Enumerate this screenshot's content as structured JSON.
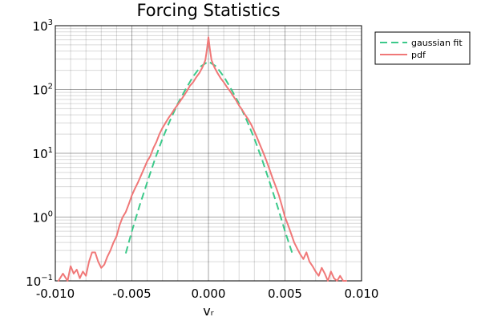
{
  "chart_data": {
    "type": "line",
    "title": "Forcing Statistics",
    "xlabel": "vᵣ",
    "ylabel": "",
    "xlim": [
      -0.01,
      0.01
    ],
    "ylim": [
      0.1,
      1000
    ],
    "yscale": "log",
    "grid": true,
    "legend_position": "top-right-outside",
    "x_ticks": [
      "-0.010",
      "-0.005",
      "0.000",
      "0.005",
      "0.010"
    ],
    "y_ticks": [
      {
        "base": "10",
        "exp": "−1",
        "value": 0.1
      },
      {
        "base": "10",
        "exp": "0",
        "value": 1
      },
      {
        "base": "10",
        "exp": "1",
        "value": 10
      },
      {
        "base": "10",
        "exp": "2",
        "value": 100
      },
      {
        "base": "10",
        "exp": "3",
        "value": 1000
      }
    ],
    "series": [
      {
        "name": "gaussian fit",
        "style": "dashed",
        "color": "#3cc98a",
        "x": [
          -0.0054,
          -0.005,
          -0.0045,
          -0.004,
          -0.0035,
          -0.003,
          -0.0025,
          -0.002,
          -0.0015,
          -0.001,
          -0.0005,
          0.0,
          0.0005,
          0.001,
          0.0015,
          0.002,
          0.0025,
          0.003,
          0.0035,
          0.004,
          0.0045,
          0.005,
          0.0055
        ],
        "y": [
          0.27,
          0.6,
          1.5,
          3.5,
          8,
          17,
          33,
          60,
          100,
          160,
          230,
          275,
          230,
          160,
          100,
          60,
          33,
          17,
          8,
          3.5,
          1.5,
          0.6,
          0.26
        ]
      },
      {
        "name": "pdf",
        "style": "solid",
        "color": "#f07878",
        "x": [
          -0.0098,
          -0.0095,
          -0.0092,
          -0.009,
          -0.0088,
          -0.0086,
          -0.0084,
          -0.0082,
          -0.008,
          -0.0078,
          -0.0076,
          -0.0074,
          -0.0072,
          -0.007,
          -0.0068,
          -0.0066,
          -0.0064,
          -0.0062,
          -0.006,
          -0.0058,
          -0.0056,
          -0.0054,
          -0.0052,
          -0.005,
          -0.0048,
          -0.0046,
          -0.0044,
          -0.0042,
          -0.004,
          -0.0038,
          -0.0036,
          -0.0034,
          -0.0032,
          -0.003,
          -0.0028,
          -0.0026,
          -0.0024,
          -0.0022,
          -0.002,
          -0.0018,
          -0.0016,
          -0.0014,
          -0.0012,
          -0.001,
          -0.0008,
          -0.0006,
          -0.0004,
          -0.0003,
          -0.0002,
          -0.0001,
          0.0,
          0.0001,
          0.0002,
          0.0003,
          0.0004,
          0.0006,
          0.0008,
          0.001,
          0.0012,
          0.0014,
          0.0016,
          0.0018,
          0.002,
          0.0022,
          0.0024,
          0.0026,
          0.0028,
          0.003,
          0.0032,
          0.0034,
          0.0036,
          0.0038,
          0.004,
          0.0042,
          0.0044,
          0.0046,
          0.0048,
          0.005,
          0.0052,
          0.0054,
          0.0056,
          0.0058,
          0.006,
          0.0062,
          0.0064,
          0.0066,
          0.0068,
          0.007,
          0.0072,
          0.0074,
          0.0076,
          0.0078,
          0.008,
          0.0082,
          0.0084,
          0.0086,
          0.0088,
          0.009
        ],
        "y": [
          0.1,
          0.13,
          0.1,
          0.17,
          0.13,
          0.15,
          0.11,
          0.14,
          0.12,
          0.2,
          0.28,
          0.28,
          0.2,
          0.16,
          0.18,
          0.24,
          0.3,
          0.4,
          0.5,
          0.75,
          1.0,
          1.2,
          1.6,
          2.2,
          2.8,
          3.5,
          4.5,
          5.8,
          7.5,
          9,
          12,
          15,
          20,
          25,
          30,
          36,
          42,
          50,
          58,
          68,
          80,
          95,
          115,
          130,
          155,
          180,
          220,
          250,
          290,
          420,
          660,
          420,
          290,
          250,
          220,
          180,
          150,
          130,
          110,
          95,
          80,
          68,
          56,
          48,
          40,
          34,
          28,
          22,
          17,
          13,
          10,
          7.5,
          5.5,
          4.0,
          3.0,
          2.2,
          1.5,
          1.0,
          0.75,
          0.55,
          0.4,
          0.32,
          0.26,
          0.22,
          0.28,
          0.2,
          0.17,
          0.14,
          0.12,
          0.16,
          0.13,
          0.1,
          0.14,
          0.11,
          0.1,
          0.12,
          0.1,
          0.1
        ]
      }
    ]
  }
}
